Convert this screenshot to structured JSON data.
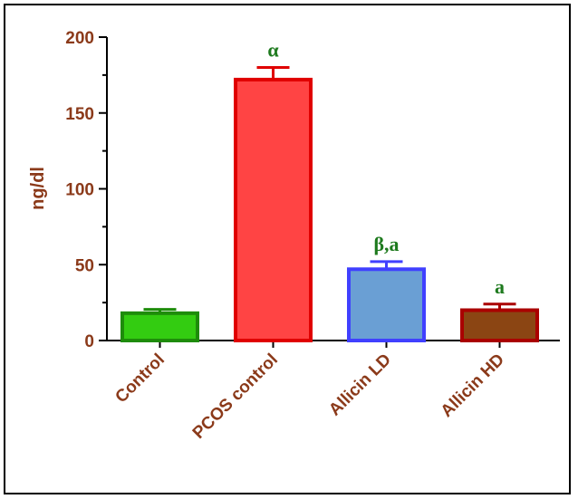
{
  "chart_data": {
    "type": "bar",
    "categories": [
      "Control",
      "PCOS control",
      "Allicin LD",
      "Allicin HD"
    ],
    "values": [
      18,
      172,
      47,
      20
    ],
    "errors": [
      2.5,
      8,
      5,
      4
    ],
    "annotations": [
      "",
      "α",
      "β,a",
      "a"
    ],
    "fill_colors": [
      "#33CC11",
      "#FF4444",
      "#6A9FD4",
      "#8B4513"
    ],
    "stroke_colors": [
      "#1E8C0A",
      "#E00000",
      "#4040FF",
      "#AA0000"
    ],
    "ylabel": "ng/dl",
    "ylim": [
      0,
      200
    ],
    "yticks": [
      "0",
      "50",
      "100",
      "150",
      "200"
    ],
    "label_color": "#8B3A1A",
    "annotation_color": "#1E7A1E",
    "grid": false,
    "legend": "none"
  }
}
